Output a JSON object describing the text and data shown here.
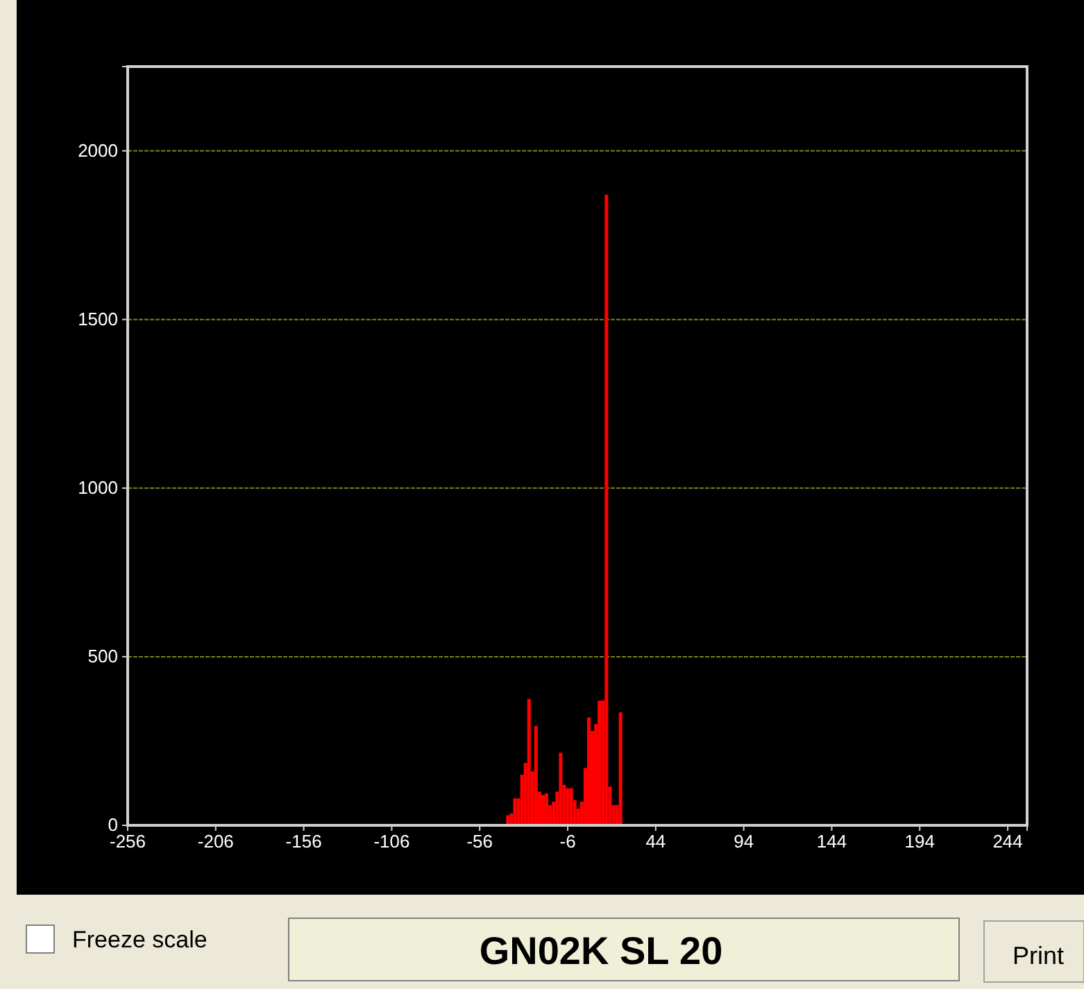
{
  "chart_data": {
    "type": "histogram",
    "bins": [
      -41,
      -39,
      -37,
      -35,
      -33,
      -31,
      -29,
      -27,
      -25,
      -23,
      -21,
      -19,
      -17,
      -15,
      -13,
      -11,
      -9,
      -7,
      -5,
      -3,
      -1,
      1,
      3,
      5,
      7,
      9,
      11,
      13,
      15,
      17,
      19,
      21,
      23,
      25
    ],
    "values": [
      30,
      35,
      80,
      80,
      150,
      185,
      375,
      160,
      295,
      100,
      90,
      95,
      60,
      70,
      100,
      215,
      120,
      110,
      110,
      75,
      50,
      70,
      170,
      320,
      280,
      300,
      370,
      370,
      1870,
      115,
      60,
      60,
      335
    ],
    "color": "#ff0000",
    "xlim": [
      -256,
      255
    ],
    "xticks": [
      -256,
      -206,
      -156,
      -106,
      -56,
      -6,
      44,
      94,
      144,
      194,
      244
    ],
    "ylim": [
      0,
      2250
    ],
    "yticks": [
      0,
      500,
      1000,
      1500,
      2000
    ],
    "grid": "y",
    "annotations": [
      "Freeze scale",
      "GN02K SL 20",
      "Print"
    ]
  }
}
